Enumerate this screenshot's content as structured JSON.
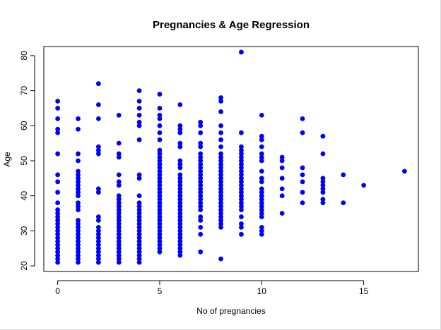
{
  "chart_data": {
    "type": "scatter",
    "title": "Pregnancies & Age Regression",
    "xlabel": "No of pregnancies",
    "ylabel": "Age",
    "xlim": [
      -0.68,
      17.68
    ],
    "ylim": [
      18.4,
      82.6
    ],
    "xticks": [
      0,
      5,
      10,
      15
    ],
    "yticks": [
      20,
      30,
      40,
      50,
      60,
      70,
      80
    ],
    "grid": false,
    "legend": "none",
    "marker_color": "#0000ff",
    "series": [
      {
        "points": [
          {
            "x": 0,
            "ys": [
              21,
              22,
              23,
              24,
              25,
              26,
              27,
              28,
              29,
              30,
              31,
              32,
              33,
              34,
              35,
              36,
              38,
              41,
              44,
              46,
              52,
              58,
              59,
              62,
              65,
              67
            ]
          },
          {
            "x": 1,
            "ys": [
              21,
              22,
              23,
              24,
              25,
              26,
              27,
              28,
              29,
              30,
              31,
              32,
              33,
              36,
              37,
              38,
              40,
              41,
              42,
              43,
              44,
              45,
              46,
              47,
              50,
              52,
              59,
              62
            ]
          },
          {
            "x": 2,
            "ys": [
              21,
              22,
              23,
              24,
              25,
              26,
              27,
              28,
              29,
              30,
              31,
              33,
              34,
              41,
              42,
              52,
              53,
              54,
              62,
              66,
              72
            ]
          },
          {
            "x": 3,
            "ys": [
              21,
              22,
              23,
              24,
              25,
              26,
              27,
              28,
              29,
              30,
              31,
              32,
              33,
              34,
              35,
              36,
              37,
              38,
              39,
              40,
              43,
              44,
              46,
              51,
              52,
              55,
              63
            ]
          },
          {
            "x": 4,
            "ys": [
              21,
              22,
              23,
              24,
              25,
              26,
              27,
              28,
              29,
              30,
              31,
              32,
              33,
              34,
              35,
              36,
              37,
              38,
              40,
              45,
              46,
              56,
              60,
              61,
              63,
              65,
              67,
              70
            ]
          },
          {
            "x": 5,
            "ys": [
              24,
              25,
              26,
              27,
              28,
              29,
              30,
              31,
              32,
              33,
              34,
              35,
              36,
              37,
              38,
              39,
              40,
              41,
              42,
              43,
              44,
              45,
              46,
              47,
              48,
              49,
              50,
              51,
              52,
              53,
              56,
              58,
              60,
              62,
              63,
              65,
              69
            ]
          },
          {
            "x": 6,
            "ys": [
              23,
              24,
              25,
              26,
              27,
              28,
              29,
              30,
              31,
              32,
              33,
              34,
              35,
              36,
              37,
              38,
              39,
              40,
              41,
              42,
              43,
              44,
              45,
              46,
              48,
              49,
              50,
              54,
              55,
              58,
              59,
              60,
              66
            ]
          },
          {
            "x": 7,
            "ys": [
              24,
              29,
              31,
              33,
              34,
              36,
              37,
              38,
              39,
              40,
              41,
              42,
              43,
              44,
              45,
              46,
              47,
              48,
              49,
              50,
              51,
              52,
              54,
              55,
              58,
              60,
              61
            ]
          },
          {
            "x": 8,
            "ys": [
              22,
              31,
              32,
              33,
              34,
              35,
              36,
              37,
              38,
              39,
              40,
              41,
              42,
              43,
              44,
              45,
              46,
              47,
              48,
              49,
              50,
              51,
              52,
              54,
              56,
              58,
              60,
              64,
              67,
              68
            ]
          },
          {
            "x": 9,
            "ys": [
              29,
              31,
              32,
              34,
              36,
              37,
              38,
              39,
              40,
              41,
              42,
              43,
              44,
              45,
              46,
              47,
              48,
              49,
              50,
              51,
              52,
              53,
              54,
              58,
              81
            ]
          },
          {
            "x": 10,
            "ys": [
              29,
              30,
              31,
              34,
              35,
              36,
              37,
              38,
              39,
              40,
              41,
              42,
              44,
              45,
              47,
              50,
              51,
              52,
              54,
              56,
              57,
              63
            ]
          },
          {
            "x": 11,
            "ys": [
              35,
              40,
              42,
              45,
              48,
              50,
              51
            ]
          },
          {
            "x": 12,
            "ys": [
              38,
              41,
              44,
              46,
              48,
              58,
              62
            ]
          },
          {
            "x": 13,
            "ys": [
              38,
              39,
              41,
              42,
              43,
              44,
              45,
              52,
              57
            ]
          },
          {
            "x": 14,
            "ys": [
              38,
              46
            ]
          },
          {
            "x": 15,
            "ys": [
              43
            ]
          },
          {
            "x": 17,
            "ys": [
              47
            ]
          }
        ]
      }
    ]
  }
}
